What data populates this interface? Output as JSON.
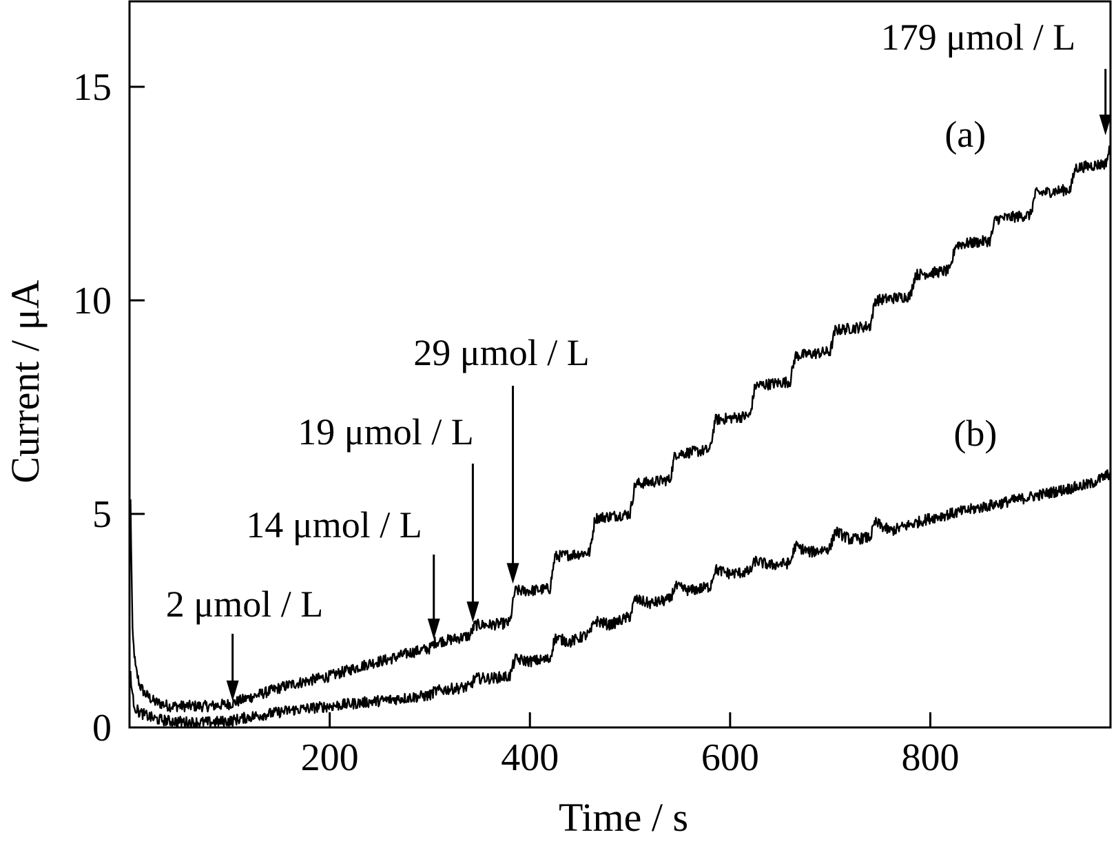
{
  "chart_data": {
    "type": "line",
    "xlabel": "Time / s",
    "ylabel": "Current / μA",
    "xlim": [
      0,
      980
    ],
    "ylim": [
      0,
      17
    ],
    "xticks": [
      200,
      400,
      600,
      800
    ],
    "yticks": [
      0,
      5,
      10,
      15
    ],
    "grid": false,
    "legend": "none",
    "colors": {
      "line": "#000000",
      "axis": "#000000"
    },
    "series": [
      {
        "name": "(a)",
        "label_at": [
          835,
          13.6
        ],
        "x": [
          1,
          3,
          6,
          10,
          15,
          25,
          40,
          60,
          80,
          100,
          120,
          140,
          160,
          180,
          200,
          220,
          240,
          260,
          280,
          300,
          305,
          320,
          340,
          345,
          360,
          380,
          385,
          400,
          420,
          425,
          460,
          465,
          500,
          505,
          540,
          545,
          580,
          585,
          620,
          625,
          660,
          665,
          700,
          705,
          740,
          745,
          780,
          785,
          820,
          825,
          860,
          865,
          900,
          905,
          940,
          945,
          975,
          980
        ],
        "y": [
          5.3,
          2.2,
          1.4,
          1.0,
          0.8,
          0.6,
          0.5,
          0.5,
          0.5,
          0.55,
          0.7,
          0.85,
          1.0,
          1.1,
          1.2,
          1.35,
          1.5,
          1.6,
          1.75,
          1.85,
          2.0,
          2.05,
          2.15,
          2.4,
          2.4,
          2.45,
          3.2,
          3.2,
          3.25,
          4.0,
          4.1,
          4.9,
          5.0,
          5.7,
          5.8,
          6.4,
          6.5,
          7.2,
          7.3,
          8.0,
          8.1,
          8.7,
          8.8,
          9.3,
          9.4,
          10.0,
          10.1,
          10.6,
          10.7,
          11.3,
          11.4,
          11.9,
          12.0,
          12.5,
          12.6,
          13.1,
          13.2,
          13.6
        ]
      },
      {
        "name": "(b)",
        "label_at": [
          845,
          6.6
        ],
        "x": [
          1,
          3,
          6,
          10,
          15,
          25,
          40,
          60,
          80,
          100,
          120,
          140,
          160,
          180,
          200,
          220,
          240,
          260,
          280,
          300,
          305,
          320,
          340,
          345,
          360,
          380,
          385,
          400,
          420,
          425,
          440,
          460,
          465,
          480,
          500,
          505,
          520,
          540,
          545,
          560,
          580,
          585,
          600,
          620,
          625,
          640,
          660,
          665,
          680,
          700,
          705,
          720,
          740,
          745,
          760,
          780,
          800,
          820,
          840,
          860,
          880,
          900,
          920,
          940,
          960,
          980
        ],
        "y": [
          1.3,
          0.7,
          0.45,
          0.35,
          0.3,
          0.2,
          0.15,
          0.12,
          0.12,
          0.15,
          0.25,
          0.32,
          0.4,
          0.45,
          0.5,
          0.55,
          0.6,
          0.65,
          0.7,
          0.75,
          0.85,
          0.9,
          0.95,
          1.15,
          1.15,
          1.2,
          1.6,
          1.55,
          1.6,
          2.1,
          2.0,
          2.2,
          2.5,
          2.4,
          2.6,
          3.0,
          2.9,
          3.0,
          3.3,
          3.2,
          3.3,
          3.7,
          3.6,
          3.65,
          3.9,
          3.8,
          3.85,
          4.25,
          4.1,
          4.2,
          4.6,
          4.4,
          4.45,
          4.8,
          4.6,
          4.75,
          4.9,
          5.0,
          5.1,
          5.2,
          5.3,
          5.4,
          5.5,
          5.6,
          5.7,
          5.95
        ]
      }
    ],
    "annotations": [
      {
        "text": "2 μmol / L",
        "x": 103,
        "y": 0.55
      },
      {
        "text": "14 μmol / L",
        "x": 304,
        "y": 2.0
      },
      {
        "text": "19 μmol / L",
        "x": 343,
        "y": 2.4
      },
      {
        "text": "29 μmol / L",
        "x": 383,
        "y": 3.3
      },
      {
        "text": "179 μmol / L",
        "x": 975,
        "y": 13.8
      }
    ]
  }
}
